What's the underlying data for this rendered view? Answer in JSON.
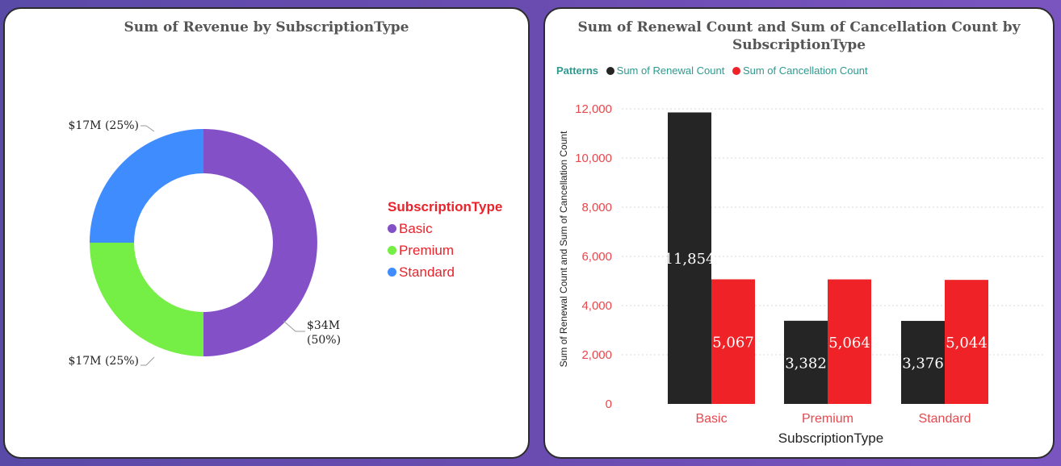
{
  "colors": {
    "basic": "#8350c8",
    "premium": "#75ee45",
    "standard": "#3f8cff",
    "renewal": "#252525",
    "cancellation": "#ee2227",
    "axis_text": "#e8474d",
    "teal": "#2e9a8f"
  },
  "donut": {
    "title": "Sum of Revenue by SubscriptionType",
    "legend_title": "SubscriptionType",
    "legend_items": [
      "Basic",
      "Premium",
      "Standard"
    ],
    "labels": {
      "basic": "$34M",
      "basic_pct": "(50%)",
      "premium": "$17M (25%)",
      "standard": "$17M (25%)"
    }
  },
  "bar": {
    "title": "Sum of Renewal Count and Sum of Cancellation Count by SubscriptionType",
    "legend_title": "Patterns",
    "legend_items": [
      "Sum of Renewal Count",
      "Sum of Cancellation Count"
    ]
  },
  "chart_data": [
    {
      "type": "pie",
      "title": "Sum of Revenue by SubscriptionType",
      "categories": [
        "Basic",
        "Premium",
        "Standard"
      ],
      "values": [
        34,
        17,
        17
      ],
      "value_labels": [
        "$34M (50%)",
        "$17M (25%)",
        "$17M (25%)"
      ],
      "percents": [
        50,
        25,
        25
      ],
      "legend_title": "SubscriptionType",
      "legend": "right",
      "donut": true
    },
    {
      "type": "bar",
      "title": "Sum of Renewal Count and Sum of Cancellation Count by SubscriptionType",
      "categories": [
        "Basic",
        "Premium",
        "Standard"
      ],
      "series": [
        {
          "name": "Sum of Renewal Count",
          "values": [
            11854,
            3382,
            3376
          ]
        },
        {
          "name": "Sum of Cancellation Count",
          "values": [
            5067,
            5064,
            5044
          ]
        }
      ],
      "value_labels": [
        [
          "11,854",
          "3,382",
          "3,376"
        ],
        [
          "5,067",
          "5,064",
          "5,044"
        ]
      ],
      "xlabel": "SubscriptionType",
      "ylabel": "Sum of Renewal Count and Sum of Cancellation Count",
      "ylim": [
        0,
        12000
      ],
      "yticks": [
        0,
        2000,
        4000,
        6000,
        8000,
        10000,
        12000
      ],
      "ytick_labels": [
        "0",
        "2,000",
        "4,000",
        "6,000",
        "8,000",
        "10,000",
        "12,000"
      ],
      "legend_title": "Patterns",
      "legend": "top-left",
      "grid": true
    }
  ]
}
